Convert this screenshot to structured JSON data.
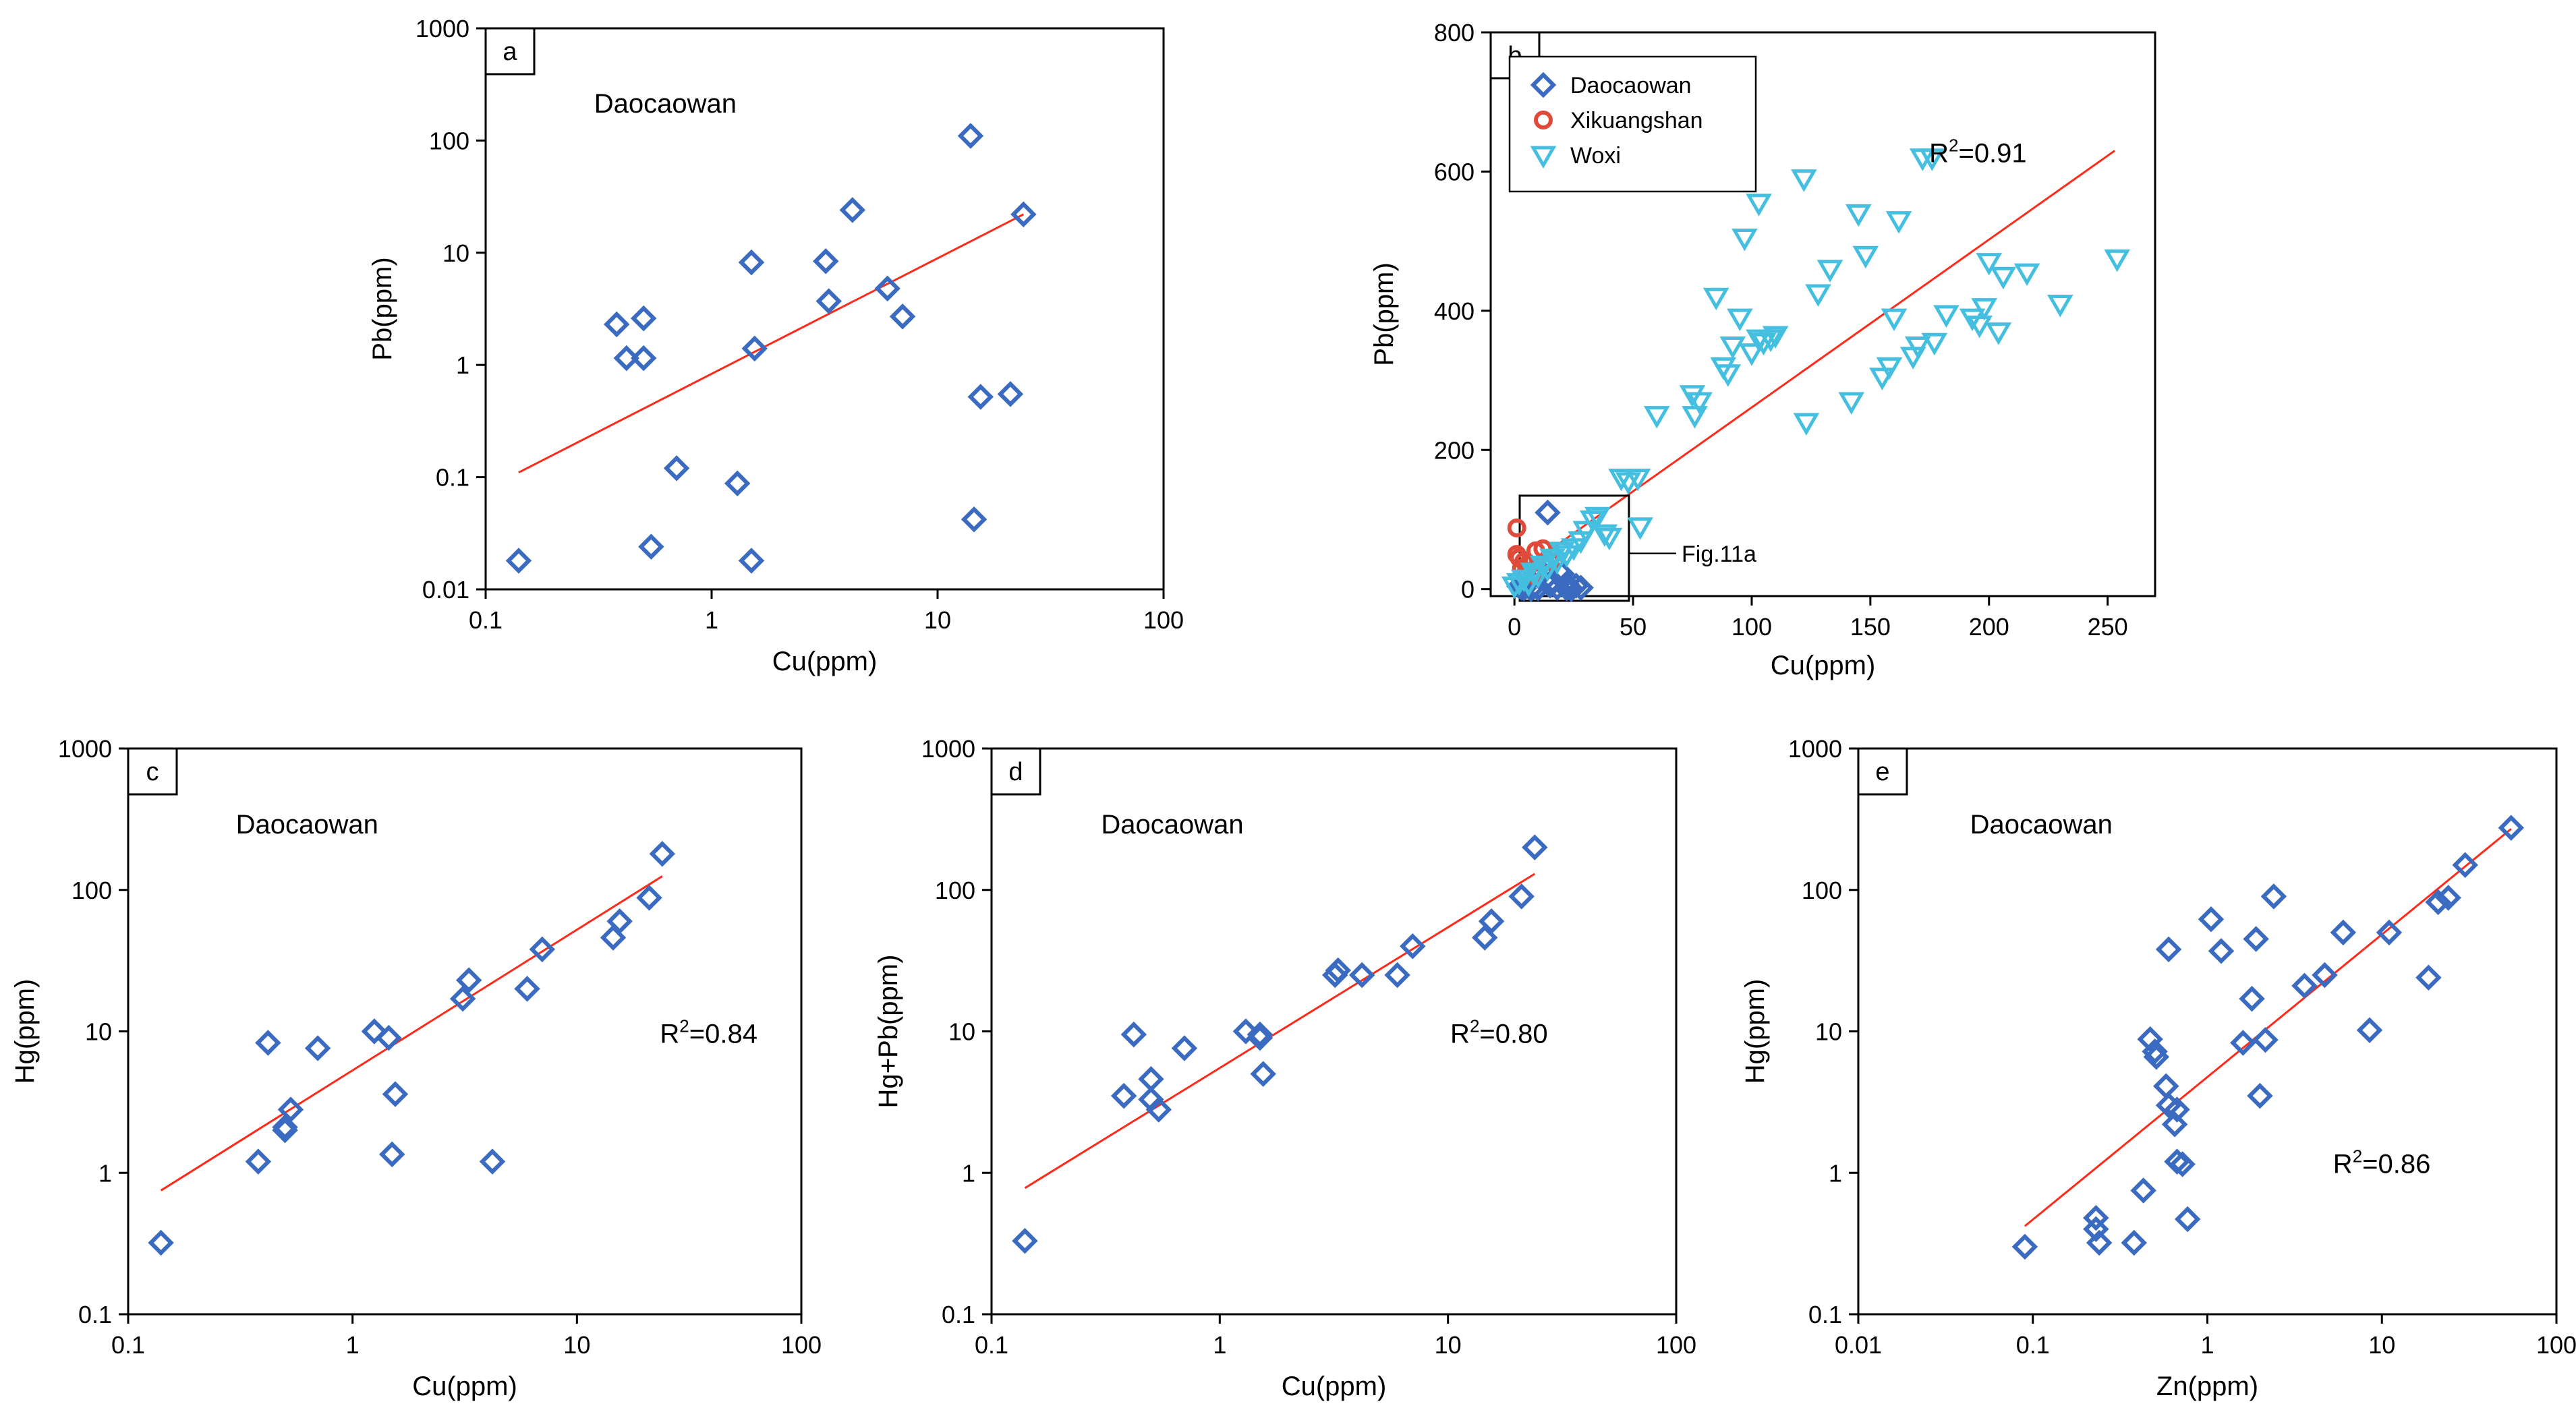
{
  "chart_data": [
    {
      "id": "a",
      "panel_label": "a",
      "type": "scatter",
      "xscale": "log",
      "yscale": "log",
      "xlim": [
        0.1,
        100
      ],
      "ylim": [
        0.01,
        1000
      ],
      "xticks": [
        "0.1",
        "1",
        "10",
        "100"
      ],
      "yticks": [
        "0.01",
        "0.1",
        "1",
        "10",
        "100",
        "1000"
      ],
      "xlabel": "Cu(ppm)",
      "ylabel": "Pb(ppm)",
      "annotation": "Daocaowan",
      "r2": null,
      "fit": [
        [
          0.14,
          0.11
        ],
        [
          24,
          22
        ]
      ],
      "series": [
        {
          "name": "Daocaowan",
          "marker": "diamond",
          "points": [
            [
              0.14,
              0.018
            ],
            [
              0.38,
              2.3
            ],
            [
              0.42,
              1.15
            ],
            [
              0.5,
              2.6
            ],
            [
              0.5,
              1.15
            ],
            [
              0.54,
              0.024
            ],
            [
              0.7,
              0.12
            ],
            [
              1.3,
              0.088
            ],
            [
              1.5,
              8.2
            ],
            [
              1.55,
              1.4
            ],
            [
              1.5,
              0.018
            ],
            [
              3.2,
              8.4
            ],
            [
              3.3,
              3.7
            ],
            [
              4.2,
              24
            ],
            [
              6,
              4.8
            ],
            [
              7,
              2.7
            ],
            [
              14,
              110
            ],
            [
              14.5,
              0.042
            ],
            [
              15.5,
              0.52
            ],
            [
              21,
              0.55
            ],
            [
              24,
              22
            ]
          ]
        }
      ]
    },
    {
      "id": "b",
      "panel_label": "b",
      "type": "scatter",
      "xscale": "linear",
      "yscale": "linear",
      "xlim": [
        -10,
        270
      ],
      "ylim": [
        -10,
        800
      ],
      "xticks": [
        0,
        50,
        100,
        150,
        200,
        250
      ],
      "yticks": [
        0,
        200,
        400,
        600,
        800
      ],
      "xlabel": "Cu(ppm)",
      "ylabel": "Pb(ppm)",
      "r2": "0.91",
      "inset_label": "Fig.11a",
      "fit": [
        [
          0,
          20
        ],
        [
          253,
          630
        ]
      ],
      "legend": [
        "Daocaowan",
        "Xikuangshan",
        "Woxi"
      ],
      "series": [
        {
          "name": "Daocaowan",
          "marker": "diamond",
          "points": [
            [
              14,
              110
            ],
            [
              3,
              2
            ],
            [
              5,
              8
            ],
            [
              8,
              3
            ],
            [
              10,
              1
            ],
            [
              12,
              24
            ],
            [
              15,
              5
            ],
            [
              18,
              2
            ],
            [
              20,
              22
            ],
            [
              22,
              8
            ],
            [
              24,
              0
            ],
            [
              26,
              5
            ],
            [
              28,
              2
            ],
            [
              4,
              1
            ],
            [
              7,
              0
            ],
            [
              2,
              4
            ],
            [
              16,
              12
            ],
            [
              22,
              1
            ]
          ]
        },
        {
          "name": "Xikuangshan",
          "marker": "circle",
          "points": [
            [
              1,
              88
            ],
            [
              1,
              50
            ],
            [
              2,
              45
            ],
            [
              4,
              40
            ],
            [
              6,
              36
            ],
            [
              9,
              55
            ],
            [
              5,
              25
            ],
            [
              12,
              58
            ],
            [
              3,
              30
            ],
            [
              8,
              20
            ],
            [
              15,
              40
            ]
          ]
        },
        {
          "name": "Woxi",
          "marker": "triangle-down",
          "points": [
            [
              0,
              5
            ],
            [
              2,
              10
            ],
            [
              4,
              15
            ],
            [
              6,
              8
            ],
            [
              8,
              25
            ],
            [
              10,
              20
            ],
            [
              12,
              35
            ],
            [
              14,
              30
            ],
            [
              16,
              45
            ],
            [
              18,
              40
            ],
            [
              20,
              55
            ],
            [
              22,
              50
            ],
            [
              25,
              60
            ],
            [
              28,
              70
            ],
            [
              30,
              85
            ],
            [
              33,
              100
            ],
            [
              35,
              105
            ],
            [
              38,
              80
            ],
            [
              40,
              75
            ],
            [
              45,
              160
            ],
            [
              48,
              155
            ],
            [
              52,
              160
            ],
            [
              53,
              90
            ],
            [
              60,
              250
            ],
            [
              75,
              280
            ],
            [
              78,
              270
            ],
            [
              76,
              250
            ],
            [
              85,
              420
            ],
            [
              88,
              320
            ],
            [
              90,
              310
            ],
            [
              92,
              350
            ],
            [
              95,
              390
            ],
            [
              97,
              505
            ],
            [
              100,
              340
            ],
            [
              103,
              360
            ],
            [
              105,
              355
            ],
            [
              108,
              360
            ],
            [
              110,
              365
            ],
            [
              103,
              555
            ],
            [
              122,
              590
            ],
            [
              123,
              240
            ],
            [
              128,
              425
            ],
            [
              133,
              460
            ],
            [
              142,
              270
            ],
            [
              145,
              540
            ],
            [
              148,
              480
            ],
            [
              155,
              305
            ],
            [
              158,
              320
            ],
            [
              160,
              390
            ],
            [
              162,
              530
            ],
            [
              168,
              335
            ],
            [
              170,
              350
            ],
            [
              172,
              620
            ],
            [
              176,
              620
            ],
            [
              177,
              355
            ],
            [
              182,
              395
            ],
            [
              193,
              390
            ],
            [
              196,
              380
            ],
            [
              198,
              405
            ],
            [
              200,
              470
            ],
            [
              204,
              370
            ],
            [
              206,
              450
            ],
            [
              216,
              455
            ],
            [
              230,
              410
            ],
            [
              254,
              475
            ]
          ]
        }
      ]
    },
    {
      "id": "c",
      "panel_label": "c",
      "type": "scatter",
      "xscale": "log",
      "yscale": "log",
      "xlim": [
        0.1,
        100
      ],
      "ylim": [
        0.1,
        1000
      ],
      "xticks": [
        "0.1",
        "1",
        "10",
        "100"
      ],
      "yticks": [
        "0.1",
        "1",
        "10",
        "100",
        "1000"
      ],
      "xlabel": "Cu(ppm)",
      "ylabel": "Hg(ppm)",
      "annotation": "Daocaowan",
      "r2": "0.84",
      "fit": [
        [
          0.14,
          0.75
        ],
        [
          24,
          125
        ]
      ],
      "series": [
        {
          "name": "Daocaowan",
          "marker": "diamond",
          "points": [
            [
              0.14,
              0.32
            ],
            [
              0.38,
              1.2
            ],
            [
              0.42,
              8.3
            ],
            [
              0.5,
              2.1
            ],
            [
              0.5,
              2.0
            ],
            [
              0.53,
              2.8
            ],
            [
              0.7,
              7.6
            ],
            [
              1.25,
              10
            ],
            [
              1.45,
              9
            ],
            [
              1.5,
              1.35
            ],
            [
              1.55,
              3.6
            ],
            [
              3.1,
              17
            ],
            [
              3.3,
              23
            ],
            [
              4.2,
              1.2
            ],
            [
              6,
              20
            ],
            [
              7,
              38
            ],
            [
              14.5,
              46
            ],
            [
              15.5,
              60
            ],
            [
              21,
              88
            ],
            [
              24,
              180
            ]
          ]
        }
      ]
    },
    {
      "id": "d",
      "panel_label": "d",
      "type": "scatter",
      "xscale": "log",
      "yscale": "log",
      "xlim": [
        0.1,
        100
      ],
      "ylim": [
        0.1,
        1000
      ],
      "xticks": [
        "0.1",
        "1",
        "10",
        "100"
      ],
      "yticks": [
        "0.1",
        "1",
        "10",
        "100",
        "1000"
      ],
      "xlabel": "Cu(ppm)",
      "ylabel": "Hg+Pb(ppm)",
      "annotation": "Daocaowan",
      "r2": "0.80",
      "fit": [
        [
          0.14,
          0.78
        ],
        [
          24,
          130
        ]
      ],
      "series": [
        {
          "name": "Daocaowan",
          "marker": "diamond",
          "points": [
            [
              0.14,
              0.33
            ],
            [
              0.38,
              3.5
            ],
            [
              0.42,
              9.5
            ],
            [
              0.5,
              4.6
            ],
            [
              0.5,
              3.3
            ],
            [
              0.54,
              2.8
            ],
            [
              0.7,
              7.6
            ],
            [
              1.3,
              10
            ],
            [
              1.5,
              9.5
            ],
            [
              1.5,
              9
            ],
            [
              1.55,
              5
            ],
            [
              3.2,
              25
            ],
            [
              3.3,
              27
            ],
            [
              4.2,
              25
            ],
            [
              6,
              25
            ],
            [
              7,
              40
            ],
            [
              14.5,
              46
            ],
            [
              15.5,
              60
            ],
            [
              21,
              90
            ],
            [
              24,
              200
            ]
          ]
        }
      ]
    },
    {
      "id": "e",
      "panel_label": "e",
      "type": "scatter",
      "xscale": "log",
      "yscale": "log",
      "xlim": [
        0.01,
        100
      ],
      "ylim": [
        0.1,
        1000
      ],
      "xticks": [
        "0.01",
        "0.1",
        "1",
        "10",
        "100"
      ],
      "yticks": [
        "0.1",
        "1",
        "10",
        "100",
        "1000"
      ],
      "xlabel": "Zn(ppm)",
      "ylabel": "Hg(ppm)",
      "annotation": "Daocaowan",
      "r2": "0.86",
      "fit": [
        [
          0.09,
          0.42
        ],
        [
          55,
          270
        ]
      ],
      "series": [
        {
          "name": "Daocaowan",
          "marker": "diamond",
          "points": [
            [
              0.09,
              0.3
            ],
            [
              0.23,
              0.48
            ],
            [
              0.23,
              0.4
            ],
            [
              0.24,
              0.32
            ],
            [
              0.38,
              0.32
            ],
            [
              0.43,
              0.75
            ],
            [
              0.47,
              8.8
            ],
            [
              0.5,
              7.2
            ],
            [
              0.51,
              6.6
            ],
            [
              0.58,
              4.1
            ],
            [
              0.6,
              3
            ],
            [
              0.6,
              38
            ],
            [
              0.65,
              2.2
            ],
            [
              0.67,
              2.8
            ],
            [
              0.67,
              1.2
            ],
            [
              0.72,
              1.15
            ],
            [
              0.77,
              0.47
            ],
            [
              1.05,
              62
            ],
            [
              1.2,
              37
            ],
            [
              1.6,
              8.3
            ],
            [
              1.8,
              17
            ],
            [
              1.9,
              45
            ],
            [
              2,
              3.5
            ],
            [
              2.15,
              8.7
            ],
            [
              2.4,
              90
            ],
            [
              3.6,
              21
            ],
            [
              4.7,
              25
            ],
            [
              6,
              50
            ],
            [
              8.5,
              10.2
            ],
            [
              11,
              50
            ],
            [
              18.5,
              24
            ],
            [
              21,
              82
            ],
            [
              24,
              88
            ],
            [
              30,
              150
            ],
            [
              55,
              275
            ]
          ]
        }
      ]
    }
  ]
}
